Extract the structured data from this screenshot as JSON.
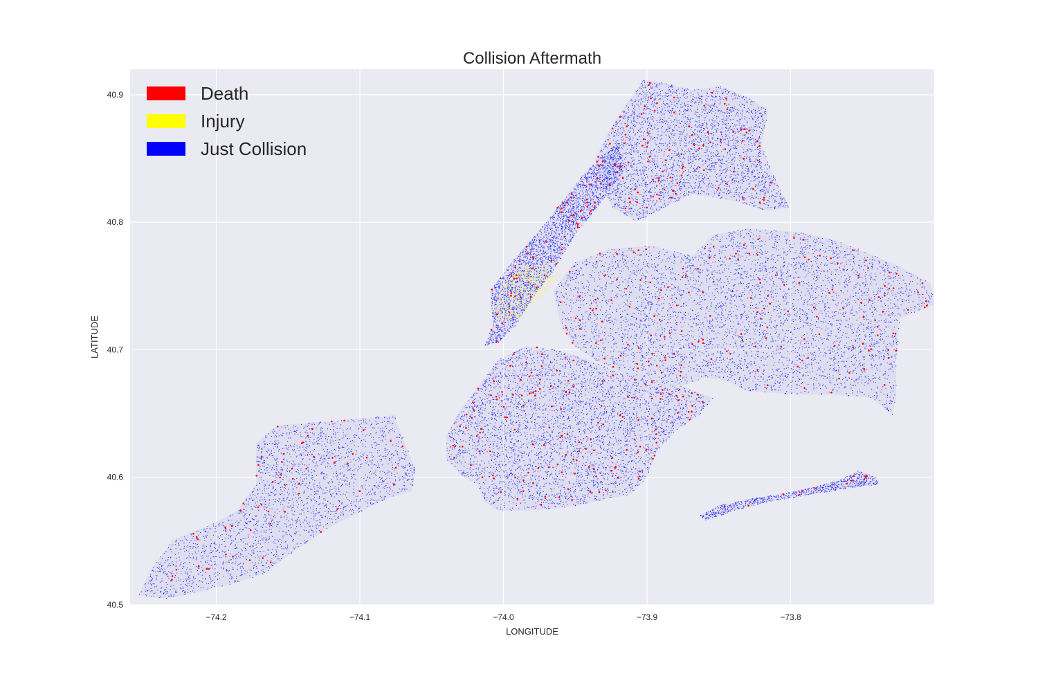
{
  "chart_data": {
    "type": "scatter",
    "title": "Collision Aftermath",
    "xlabel": "LONGITUDE",
    "ylabel": "LATITUDE",
    "xlim": [
      -74.26,
      -73.7
    ],
    "ylim": [
      40.5,
      40.92
    ],
    "xticks": [
      -74.2,
      -74.1,
      -74.0,
      -73.9,
      -73.8
    ],
    "xtick_labels": [
      "−74.2",
      "−74.1",
      "−74.0",
      "−73.9",
      "−73.8"
    ],
    "yticks": [
      40.5,
      40.6,
      40.7,
      40.8,
      40.9
    ],
    "ytick_labels": [
      "40.5",
      "40.6",
      "40.7",
      "40.8",
      "40.9"
    ],
    "grid": true,
    "legend_position": "top-left",
    "series": [
      {
        "name": "Death",
        "color": "#ff0000"
      },
      {
        "name": "Injury",
        "color": "#ffff00"
      },
      {
        "name": "Just Collision",
        "color": "#0000ff"
      }
    ],
    "colors": {
      "background": "#eaeaf2",
      "grid": "#ffffff"
    }
  }
}
